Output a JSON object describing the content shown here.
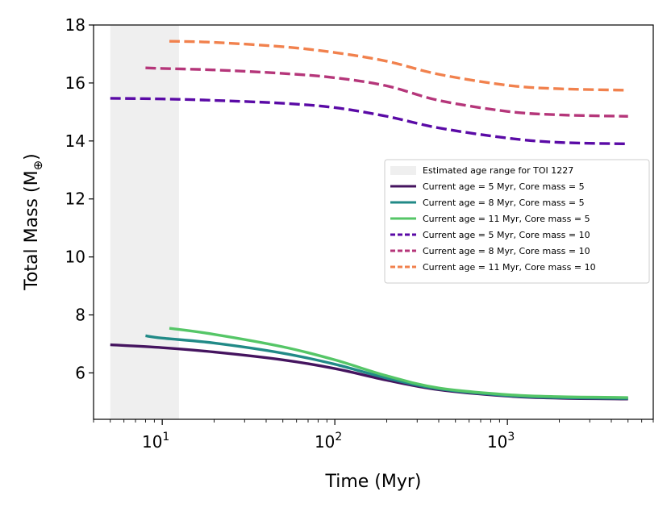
{
  "chart_data": {
    "type": "line",
    "xscale": "log",
    "xlim": [
      4,
      7000
    ],
    "ylim": [
      4.4,
      18
    ],
    "xlabel": "Time (Myr)",
    "ylabel_main": "Total Mass (M",
    "ylabel_symbol": "⊕",
    "ylabel_close": ")",
    "yticks": [
      6,
      8,
      10,
      12,
      14,
      16,
      18
    ],
    "ytick_labels": [
      "6",
      "8",
      "10",
      "12",
      "14",
      "16",
      "18"
    ],
    "xticks": [
      10,
      100,
      1000
    ],
    "xtick_labels": [
      {
        "base": "10",
        "exp": "1"
      },
      {
        "base": "10",
        "exp": "2"
      },
      {
        "base": "10",
        "exp": "3"
      }
    ],
    "shaded_region": {
      "label": "Estimated age range for TOI 1227",
      "x_range": [
        5,
        12.5
      ],
      "color": "#efefef"
    },
    "legend_position": "center-right",
    "series": [
      {
        "name": "Current age = 5 Myr, Core mass = 5",
        "color": "#45145f",
        "style": "solid",
        "x": [
          5,
          10,
          20,
          50,
          100,
          200,
          400,
          1000,
          2000,
          5000
        ],
        "y": [
          6.97,
          6.87,
          6.72,
          6.45,
          6.15,
          5.75,
          5.42,
          5.2,
          5.13,
          5.1
        ]
      },
      {
        "name": "Current age = 8 Myr, Core mass = 5",
        "color": "#218a87",
        "style": "solid",
        "x": [
          8,
          10,
          20,
          50,
          100,
          200,
          400,
          1000,
          2000,
          5000
        ],
        "y": [
          7.28,
          7.2,
          7.03,
          6.68,
          6.3,
          5.82,
          5.45,
          5.22,
          5.15,
          5.12
        ]
      },
      {
        "name": "Current age = 11 Myr, Core mass = 5",
        "color": "#55c667",
        "style": "solid",
        "x": [
          11,
          20,
          50,
          100,
          200,
          400,
          1000,
          2000,
          5000
        ],
        "y": [
          7.54,
          7.33,
          6.9,
          6.45,
          5.9,
          5.48,
          5.25,
          5.18,
          5.15
        ]
      },
      {
        "name": "Current age = 5 Myr, Core mass = 10",
        "color": "#5a0aa6",
        "style": "dashed",
        "x": [
          5,
          10,
          20,
          50,
          100,
          200,
          400,
          1000,
          2000,
          5000
        ],
        "y": [
          15.47,
          15.45,
          15.4,
          15.3,
          15.15,
          14.85,
          14.45,
          14.1,
          13.95,
          13.9
        ]
      },
      {
        "name": "Current age = 8 Myr, Core mass = 10",
        "color": "#b5367a",
        "style": "dashed",
        "x": [
          8,
          10,
          20,
          50,
          100,
          200,
          400,
          1000,
          2000,
          5000
        ],
        "y": [
          16.52,
          16.5,
          16.45,
          16.33,
          16.18,
          15.9,
          15.4,
          15.02,
          14.9,
          14.85
        ]
      },
      {
        "name": "Current age = 11 Myr, Core mass = 10",
        "color": "#f1814d",
        "style": "dashed",
        "x": [
          11,
          20,
          50,
          100,
          200,
          400,
          1000,
          2000,
          5000
        ],
        "y": [
          17.44,
          17.4,
          17.25,
          17.05,
          16.75,
          16.3,
          15.92,
          15.8,
          15.75
        ]
      }
    ]
  }
}
